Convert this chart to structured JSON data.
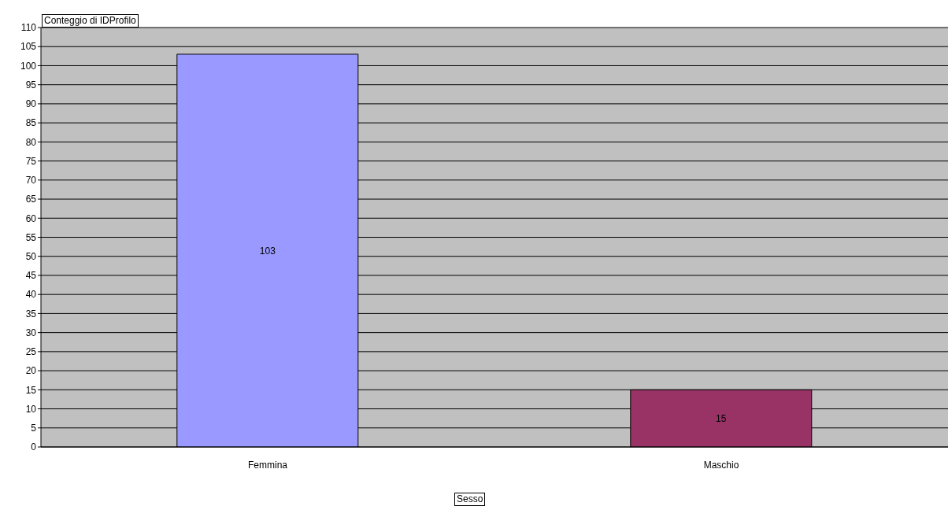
{
  "chart_data": {
    "type": "bar",
    "title": "Conteggio di IDProfilo",
    "xlabel": "Sesso",
    "categories": [
      "Femmina",
      "Maschio"
    ],
    "values": [
      103,
      15
    ],
    "colors": [
      "#9999ff",
      "#993366"
    ],
    "ylim": [
      0,
      110
    ],
    "yticks": [
      0,
      5,
      10,
      15,
      20,
      25,
      30,
      35,
      40,
      45,
      50,
      55,
      60,
      65,
      70,
      75,
      80,
      85,
      90,
      95,
      100,
      105,
      110
    ],
    "grid": "y",
    "data_labels": true
  }
}
